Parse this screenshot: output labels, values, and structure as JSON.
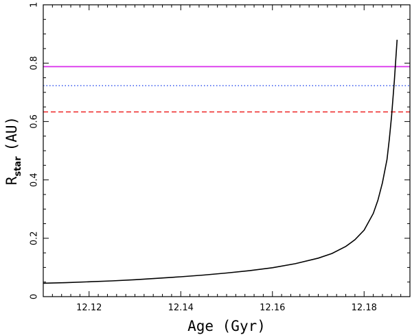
{
  "chart_data": {
    "type": "line",
    "title": "",
    "xlabel": "Age (Gyr)",
    "ylabel": {
      "main": "R",
      "subscript": "star",
      "unit": "(AU)"
    },
    "xlim": [
      12.11,
      12.19
    ],
    "ylim": [
      0,
      1
    ],
    "x_major_ticks": [
      12.12,
      12.14,
      12.16,
      12.18
    ],
    "x_tick_labels": [
      "12.12",
      "12.14",
      "12.16",
      "12.18"
    ],
    "y_major_ticks": [
      0,
      0.2,
      0.4,
      0.6,
      0.8,
      1
    ],
    "y_tick_labels": [
      "0",
      "0.2",
      "0.4",
      "0.6",
      "0.8",
      "1"
    ],
    "series": [
      {
        "name": "stellar radius",
        "color": "#000000",
        "style": "solid",
        "x": [
          12.11,
          12.115,
          12.12,
          12.125,
          12.13,
          12.135,
          12.14,
          12.145,
          12.15,
          12.155,
          12.16,
          12.165,
          12.17,
          12.173,
          12.176,
          12.178,
          12.18,
          12.182,
          12.183,
          12.184,
          12.185,
          12.1855,
          12.186,
          12.1863,
          12.1866,
          12.1869,
          12.1872
        ],
        "y": [
          0.046,
          0.048,
          0.051,
          0.054,
          0.058,
          0.063,
          0.068,
          0.074,
          0.081,
          0.089,
          0.099,
          0.113,
          0.132,
          0.148,
          0.172,
          0.195,
          0.228,
          0.285,
          0.33,
          0.39,
          0.47,
          0.54,
          0.62,
          0.68,
          0.74,
          0.81,
          0.88
        ]
      }
    ],
    "reference_lines": [
      {
        "name": "magenta solid line",
        "y": 0.788,
        "color": "#dd44ee",
        "style": "solid"
      },
      {
        "name": "blue dotted line",
        "y": 0.723,
        "color": "#3355ee",
        "style": "dotted"
      },
      {
        "name": "red dashed line",
        "y": 0.633,
        "color": "#ee2222",
        "style": "dashed"
      }
    ]
  }
}
